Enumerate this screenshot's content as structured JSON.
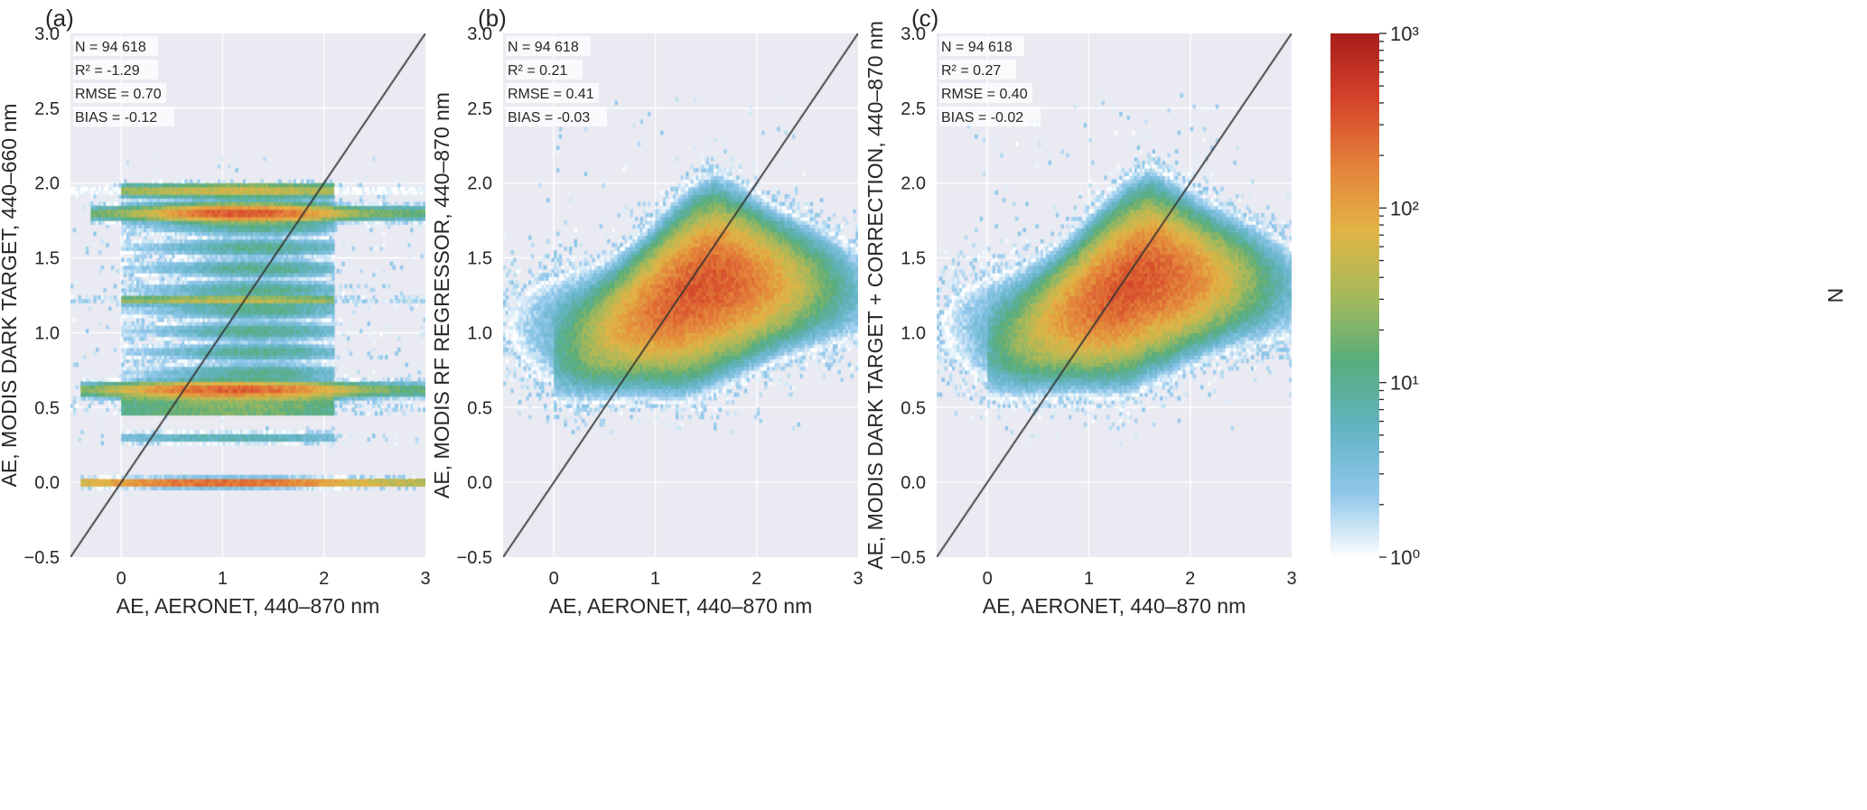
{
  "chart_data": [
    {
      "type": "heatmap",
      "panel_label": "(a)",
      "xlabel": "AE, AERONET, 440–870 nm",
      "ylabel": "AE, MODIS DARK TARGET, 440–660 nm",
      "xlim": [
        -0.5,
        3
      ],
      "ylim": [
        -0.5,
        3.0
      ],
      "xticks": [
        "0",
        "1",
        "2",
        "3"
      ],
      "yticks": [
        "−0.5",
        "0.0",
        "0.5",
        "1.0",
        "1.5",
        "2.0",
        "2.5",
        "3.0"
      ],
      "stats": [
        "N = 94 618",
        "R² = -1.29",
        "RMSE = 0.70",
        "BIAS = -0.12"
      ],
      "one_to_one_line": true,
      "distribution": {
        "kind": "bands",
        "x_range": [
          0.0,
          2.2
        ],
        "x_peak": 1.2,
        "band_y": [
          0.0,
          0.3,
          0.63,
          1.22,
          1.8,
          1.95
        ]
      }
    },
    {
      "type": "heatmap",
      "panel_label": "(b)",
      "xlabel": "AE, AERONET, 440–870 nm",
      "ylabel": "AE, MODIS RF REGRESSOR, 440–870 nm",
      "xlim": [
        -0.5,
        3
      ],
      "ylim": [
        -0.5,
        3.0
      ],
      "xticks": [
        "0",
        "1",
        "2",
        "3"
      ],
      "yticks": [
        "−0.5",
        "0.0",
        "0.5",
        "1.0",
        "1.5",
        "2.0",
        "2.5",
        "3.0"
      ],
      "stats": [
        "N = 94 618",
        "R² = 0.21",
        "RMSE = 0.41",
        "BIAS = -0.03"
      ],
      "one_to_one_line": true,
      "distribution": {
        "kind": "cloud",
        "peak": [
          1.4,
          1.3
        ],
        "x_range": [
          0.0,
          2.2
        ],
        "y_range": [
          0.5,
          2.0
        ]
      }
    },
    {
      "type": "heatmap",
      "panel_label": "(c)",
      "xlabel": "AE, AERONET, 440–870 nm",
      "ylabel": "AE, MODIS DARK TARGET + CORRECTION, 440–870 nm",
      "xlim": [
        -0.5,
        3
      ],
      "ylim": [
        -0.5,
        3.0
      ],
      "xticks": [
        "0",
        "1",
        "2",
        "3"
      ],
      "yticks": [
        "−0.5",
        "0.0",
        "0.5",
        "1.0",
        "1.5",
        "2.0",
        "2.5",
        "3.0"
      ],
      "stats": [
        "N = 94 618",
        "R² = 0.27",
        "RMSE = 0.40",
        "BIAS = -0.02"
      ],
      "one_to_one_line": true,
      "distribution": {
        "kind": "cloud",
        "peak": [
          1.4,
          1.35
        ],
        "x_range": [
          0.0,
          2.2
        ],
        "y_range": [
          0.4,
          2.0
        ]
      }
    }
  ],
  "colorbar": {
    "label": "N",
    "scale": "log",
    "range": [
      1,
      1000
    ],
    "ticks": [
      "10⁰",
      "10¹",
      "10²",
      "10³"
    ],
    "colors": [
      "#ffffff",
      "#8ec6ea",
      "#62b3c2",
      "#58ad7c",
      "#a7b95a",
      "#e2b445",
      "#e4813a",
      "#d4432a",
      "#a81d1b"
    ]
  },
  "colors": {
    "plot_bg": "#eaeaf2",
    "grid": "#ffffff",
    "line": "#333333"
  }
}
